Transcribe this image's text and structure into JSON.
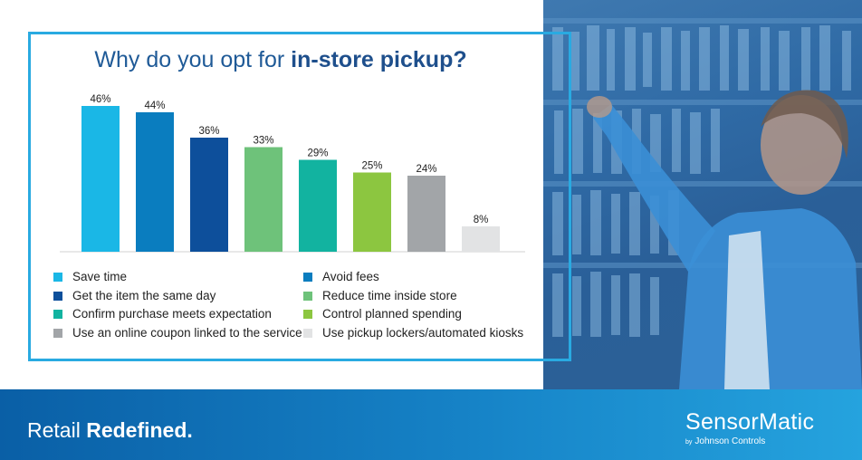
{
  "title_normal": "Why do you opt for ",
  "title_bold": "in-store pickup?",
  "chart_data": {
    "type": "bar",
    "categories": [
      "Save time",
      "Avoid fees",
      "Get the item the same day",
      "Reduce time inside store",
      "Confirm purchase meets expectation",
      "Control planned spending",
      "Use an online coupon linked to the service",
      "Use pickup lockers/automated kiosks"
    ],
    "values": [
      46,
      44,
      36,
      33,
      29,
      25,
      24,
      8
    ],
    "value_labels": [
      "46%",
      "44%",
      "36%",
      "33%",
      "29%",
      "25%",
      "24%",
      "8%"
    ],
    "colors": [
      "#1ab7e6",
      "#0a7dbf",
      "#0d4f9b",
      "#6ec27a",
      "#12b3a0",
      "#8cc640",
      "#a2a5a8",
      "#e2e3e4"
    ],
    "ylim": [
      0,
      50
    ],
    "legend_position": "bottom",
    "grid": false
  },
  "footer": {
    "tagline_normal": "Retail ",
    "tagline_bold": "Redefined.",
    "brand": "SensorMatic",
    "brand_by": "by",
    "brand_sub": "Johnson Controls"
  }
}
